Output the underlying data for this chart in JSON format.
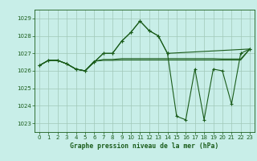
{
  "title": "Graphe pression niveau de la mer (hPa)",
  "bg_color": "#c8eee8",
  "grid_color": "#a0c8b8",
  "line_color": "#1a5c1a",
  "ylim": [
    1022.5,
    1029.5
  ],
  "xlim": [
    -0.5,
    23.5
  ],
  "yticks": [
    1023,
    1024,
    1025,
    1026,
    1027,
    1028,
    1029
  ],
  "xticks": [
    0,
    1,
    2,
    3,
    4,
    5,
    6,
    7,
    8,
    9,
    10,
    11,
    12,
    13,
    14,
    15,
    16,
    17,
    18,
    19,
    20,
    21,
    22,
    23
  ],
  "line1_x": [
    0,
    1,
    2,
    3,
    4,
    5,
    6,
    7,
    8,
    9,
    10,
    11,
    12,
    13,
    14,
    23
  ],
  "line1_y": [
    1026.3,
    1026.6,
    1026.6,
    1026.4,
    1026.1,
    1026.0,
    1026.5,
    1027.0,
    1027.0,
    1027.7,
    1028.2,
    1028.85,
    1028.3,
    1028.0,
    1027.0,
    1027.25
  ],
  "line2_x": [
    0,
    1,
    2,
    3,
    4,
    5,
    6,
    7,
    8,
    9,
    10,
    11,
    12,
    13,
    14,
    15,
    16,
    17,
    18,
    19,
    20,
    21,
    22,
    23
  ],
  "line2_y": [
    1026.3,
    1026.6,
    1026.6,
    1026.4,
    1026.1,
    1026.0,
    1026.55,
    1026.6,
    1026.6,
    1026.62,
    1026.62,
    1026.62,
    1026.62,
    1026.62,
    1026.62,
    1026.62,
    1026.62,
    1026.62,
    1026.62,
    1026.62,
    1026.62,
    1026.62,
    1026.62,
    1027.25
  ],
  "line3_x": [
    0,
    1,
    2,
    3,
    4,
    5,
    6,
    7,
    8,
    9,
    10,
    11,
    12,
    13,
    14,
    15,
    16,
    17,
    18,
    19,
    20,
    21,
    22,
    23
  ],
  "line3_y": [
    1026.3,
    1026.6,
    1026.6,
    1026.4,
    1026.1,
    1026.0,
    1026.55,
    1026.65,
    1026.65,
    1026.7,
    1026.7,
    1026.7,
    1026.7,
    1026.7,
    1026.7,
    1026.7,
    1026.7,
    1026.7,
    1026.7,
    1026.7,
    1026.68,
    1026.68,
    1026.68,
    1027.25
  ],
  "main_x": [
    0,
    1,
    2,
    3,
    4,
    5,
    6,
    7,
    8,
    9,
    10,
    11,
    12,
    13,
    14,
    15,
    16,
    17,
    18,
    19,
    20,
    21,
    22,
    23
  ],
  "main_y": [
    1026.3,
    1026.6,
    1026.6,
    1026.4,
    1026.1,
    1026.0,
    1026.5,
    1027.0,
    1027.0,
    1027.7,
    1028.2,
    1028.85,
    1028.3,
    1028.0,
    1027.0,
    1023.4,
    1023.2,
    1026.1,
    1023.2,
    1026.1,
    1026.0,
    1024.1,
    1027.0,
    1027.25
  ]
}
